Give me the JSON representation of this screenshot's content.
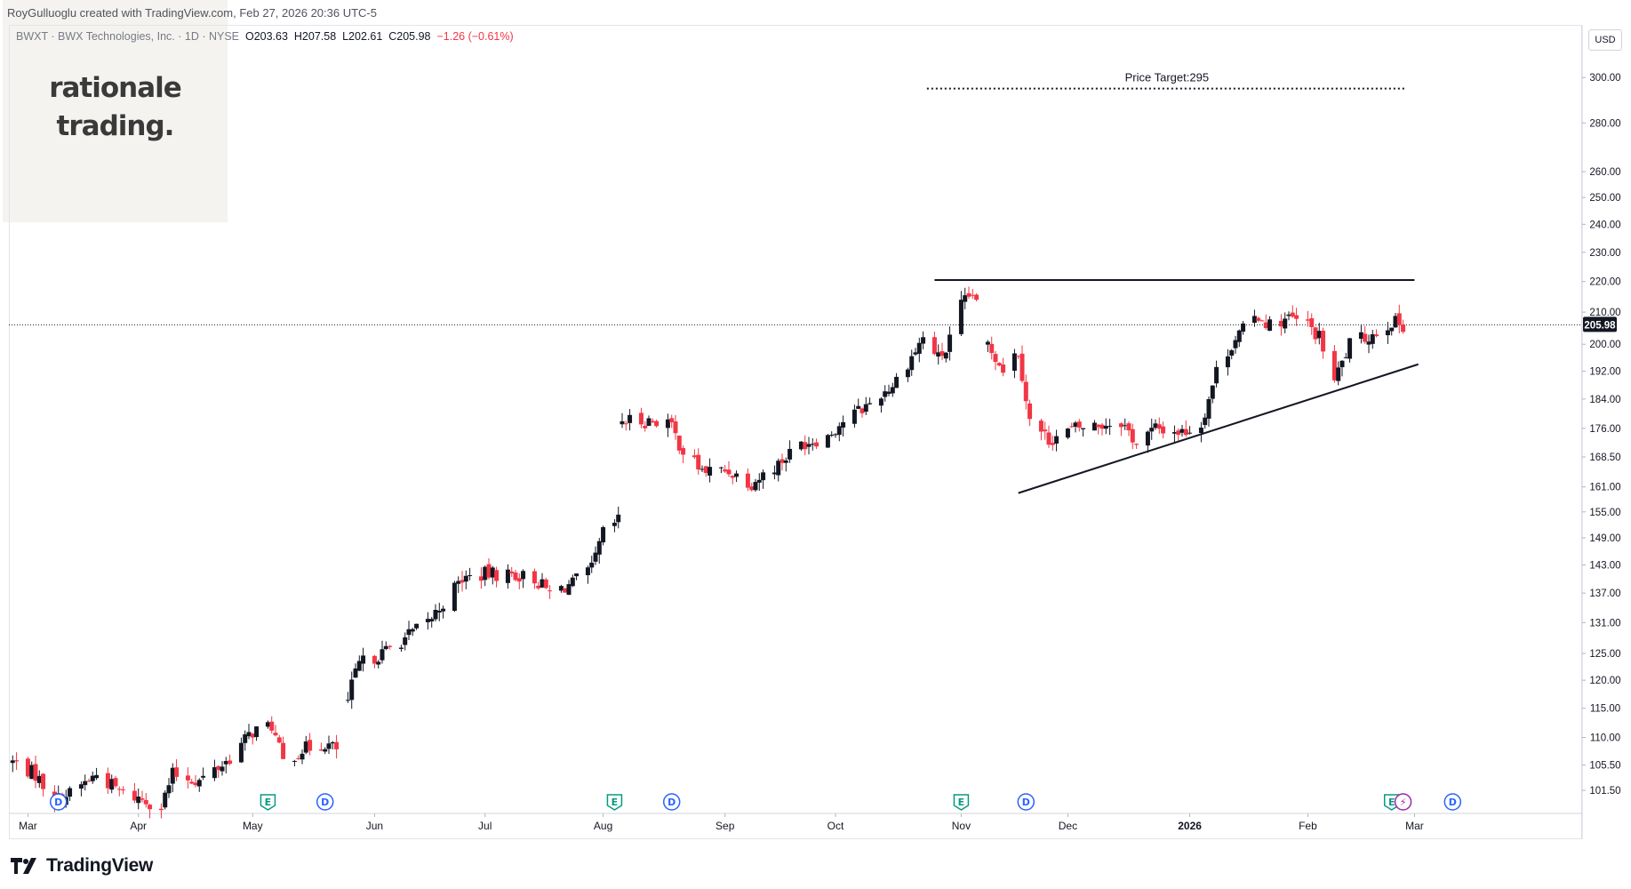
{
  "header": {
    "attribution": "RoyGulluoglu created with TradingView.com, Feb 27, 2026 20:36 UTC-5",
    "symbol_line": "BWXT · BWX Technologies, Inc. · 1D · NYSE",
    "open": "O203.63",
    "high": "H207.58",
    "low": "L202.61",
    "close": "C205.98",
    "change": "−1.26 (−0.61%)"
  },
  "watermark": {
    "line1": "rationale",
    "line2": "trading."
  },
  "currency": "USD",
  "footer": {
    "brand": "TradingView"
  },
  "colors": {
    "up": "#131722",
    "down": "#f23645",
    "earnings": "#089981",
    "dividend": "#2962ff",
    "split": "#9c27b0"
  },
  "chart_data": {
    "type": "candlestick",
    "scale": "log",
    "y_ticks": [
      101.5,
      105.5,
      110.0,
      115.0,
      120.0,
      125.0,
      131.0,
      137.0,
      143.0,
      149.0,
      155.0,
      161.0,
      168.5,
      176.0,
      184.0,
      192.0,
      200.0,
      210.0,
      220.0,
      230.0,
      240.0,
      250.0,
      260.0,
      280.0,
      300.0
    ],
    "y_tick_labels": [
      "101.50",
      "105.50",
      "110.00",
      "115.00",
      "120.00",
      "125.00",
      "131.00",
      "137.00",
      "143.00",
      "149.00",
      "155.00",
      "161.00",
      "168.50",
      "176.00",
      "184.00",
      "192.00",
      "200.00",
      "210.00",
      "220.00",
      "230.00",
      "240.00",
      "250.00",
      "260.00",
      "280.00",
      "300.00"
    ],
    "ylim": [
      98,
      325
    ],
    "last_price": 205.98,
    "last_price_label": "205.98",
    "x_axis": {
      "labels": [
        "Mar",
        "Apr",
        "May",
        "Jun",
        "Jul",
        "Aug",
        "Sep",
        "Oct",
        "Nov",
        "Dec",
        "2026",
        "Feb",
        "Mar"
      ],
      "bold": [
        false,
        false,
        false,
        false,
        false,
        false,
        false,
        false,
        false,
        false,
        true,
        false,
        false
      ],
      "dates": [
        "2025-03-03",
        "2025-04-01",
        "2025-05-01",
        "2025-06-02",
        "2025-07-01",
        "2025-08-01",
        "2025-09-02",
        "2025-10-01",
        "2025-11-03",
        "2025-12-01",
        "2026-01-02",
        "2026-02-02",
        "2026-03-02"
      ],
      "date_range": [
        "2025-02-26",
        "2026-04-15"
      ]
    },
    "annotations": {
      "price_target_label": "Price Target:295",
      "price_target": 295,
      "price_target_span": [
        "2025-10-25",
        "2026-02-28"
      ],
      "resistance": {
        "value": 220.5,
        "from": "2025-10-27",
        "to": "2026-03-02"
      },
      "support": {
        "from_date": "2025-11-18",
        "from_value": 159.5,
        "to_date": "2026-03-03",
        "to_value": 194.0
      }
    },
    "events": [
      {
        "type": "dividend",
        "label": "D",
        "date": "2025-03-11"
      },
      {
        "type": "earnings",
        "label": "E",
        "date": "2025-05-05"
      },
      {
        "type": "dividend",
        "label": "D",
        "date": "2025-05-20"
      },
      {
        "type": "earnings",
        "label": "E",
        "date": "2025-08-04"
      },
      {
        "type": "dividend",
        "label": "D",
        "date": "2025-08-19"
      },
      {
        "type": "earnings",
        "label": "E",
        "date": "2025-11-03"
      },
      {
        "type": "dividend",
        "label": "D",
        "date": "2025-11-20"
      },
      {
        "type": "earnings",
        "label": "E",
        "date": "2026-02-24"
      },
      {
        "type": "split",
        "label": "⚡",
        "date": "2026-02-27"
      },
      {
        "type": "dividend",
        "label": "D",
        "date": "2026-03-12"
      }
    ],
    "anchors": [
      [
        "2025-02-27",
        106
      ],
      [
        "2025-03-05",
        104
      ],
      [
        "2025-03-10",
        100
      ],
      [
        "2025-03-14",
        101
      ],
      [
        "2025-03-21",
        104
      ],
      [
        "2025-03-28",
        101
      ],
      [
        "2025-04-03",
        100
      ],
      [
        "2025-04-07",
        99
      ],
      [
        "2025-04-10",
        104
      ],
      [
        "2025-04-17",
        103
      ],
      [
        "2025-04-24",
        106
      ],
      [
        "2025-05-01",
        111
      ],
      [
        "2025-05-06",
        112
      ],
      [
        "2025-05-09",
        106
      ],
      [
        "2025-05-14",
        108
      ],
      [
        "2025-05-20",
        109
      ],
      [
        "2025-05-23",
        108
      ],
      [
        "2025-05-27",
        119
      ],
      [
        "2025-05-29",
        123
      ],
      [
        "2025-06-04",
        125
      ],
      [
        "2025-06-10",
        128
      ],
      [
        "2025-06-16",
        131
      ],
      [
        "2025-06-20",
        135
      ],
      [
        "2025-06-25",
        140
      ],
      [
        "2025-07-01",
        141
      ],
      [
        "2025-07-08",
        141
      ],
      [
        "2025-07-14",
        140
      ],
      [
        "2025-07-18",
        137
      ],
      [
        "2025-07-24",
        139
      ],
      [
        "2025-07-29",
        142
      ],
      [
        "2025-08-01",
        150
      ],
      [
        "2025-08-05",
        153
      ],
      [
        "2025-08-06",
        178
      ],
      [
        "2025-08-12",
        178
      ],
      [
        "2025-08-18",
        178
      ],
      [
        "2025-08-22",
        170
      ],
      [
        "2025-08-27",
        165
      ],
      [
        "2025-09-03",
        165
      ],
      [
        "2025-09-09",
        162
      ],
      [
        "2025-09-15",
        166
      ],
      [
        "2025-09-22",
        172
      ],
      [
        "2025-09-29",
        174
      ],
      [
        "2025-10-03",
        178
      ],
      [
        "2025-10-09",
        182
      ],
      [
        "2025-10-16",
        188
      ],
      [
        "2025-10-22",
        198
      ],
      [
        "2025-10-24",
        202
      ],
      [
        "2025-10-28",
        196
      ],
      [
        "2025-10-30",
        198
      ],
      [
        "2025-11-03",
        212
      ],
      [
        "2025-11-06",
        216
      ],
      [
        "2025-11-10",
        200
      ],
      [
        "2025-11-14",
        193
      ],
      [
        "2025-11-18",
        198
      ],
      [
        "2025-11-21",
        178
      ],
      [
        "2025-11-26",
        173
      ],
      [
        "2025-12-03",
        176
      ],
      [
        "2025-12-10",
        177
      ],
      [
        "2025-12-15",
        178
      ],
      [
        "2025-12-19",
        172
      ],
      [
        "2025-12-24",
        176
      ],
      [
        "2025-12-31",
        175
      ],
      [
        "2026-01-05",
        177
      ],
      [
        "2026-01-09",
        192
      ],
      [
        "2026-01-14",
        202
      ],
      [
        "2026-01-20",
        209
      ],
      [
        "2026-01-23",
        206
      ],
      [
        "2026-01-28",
        208
      ],
      [
        "2026-02-02",
        206
      ],
      [
        "2026-02-05",
        202
      ],
      [
        "2026-02-09",
        189
      ],
      [
        "2026-02-13",
        200
      ],
      [
        "2026-02-19",
        203
      ],
      [
        "2026-02-24",
        207
      ],
      [
        "2026-02-27",
        205.98
      ]
    ]
  }
}
